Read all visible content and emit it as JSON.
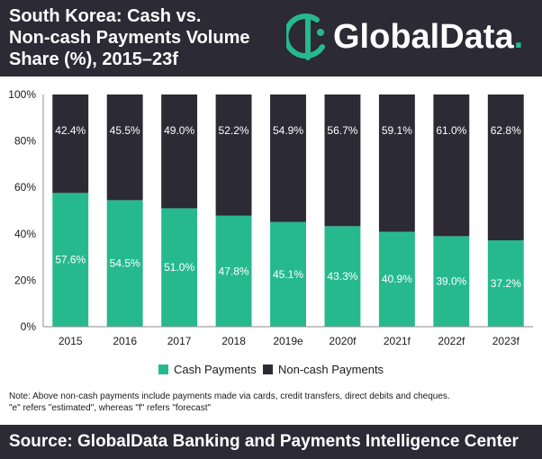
{
  "header": {
    "title": "South Korea: Cash vs.\nNon-cash Payments Volume\nShare (%), 2015–23f",
    "logo_text": "GlobalData",
    "logo_dot": ".",
    "logo_icon": "globaldata-logo-icon"
  },
  "colors": {
    "header_bg": "#2b2a35",
    "cash": "#27b98e",
    "non_cash": "#2b2a35",
    "accent": "#27b98e"
  },
  "chart_data": {
    "type": "bar",
    "stacked": true,
    "categories": [
      "2015",
      "2016",
      "2017",
      "2018",
      "2019e",
      "2020f",
      "2021f",
      "2022f",
      "2023f"
    ],
    "series": [
      {
        "name": "Cash Payments",
        "values": [
          57.6,
          54.5,
          51.0,
          47.8,
          45.1,
          43.3,
          40.9,
          39.0,
          37.2
        ]
      },
      {
        "name": "Non-cash Payments",
        "values": [
          42.4,
          45.5,
          49.0,
          52.2,
          54.9,
          56.7,
          59.1,
          61.0,
          62.8
        ]
      }
    ],
    "yticks": [
      "0%",
      "20%",
      "40%",
      "60%",
      "80%",
      "100%"
    ],
    "ylim": [
      0,
      100
    ],
    "grid": false,
    "legend": "bottom"
  },
  "legend": {
    "cash_label": "Cash Payments",
    "non_cash_label": "Non-cash Payments"
  },
  "note": "Note: Above non-cash payments include payments made via cards, credit transfers, direct debits and cheques.\n\"e\" refers \"estimated\", whereas \"f\" refers \"forecast\"",
  "footer": {
    "source": "Source: GlobalData Banking and Payments Intelligence Center"
  }
}
